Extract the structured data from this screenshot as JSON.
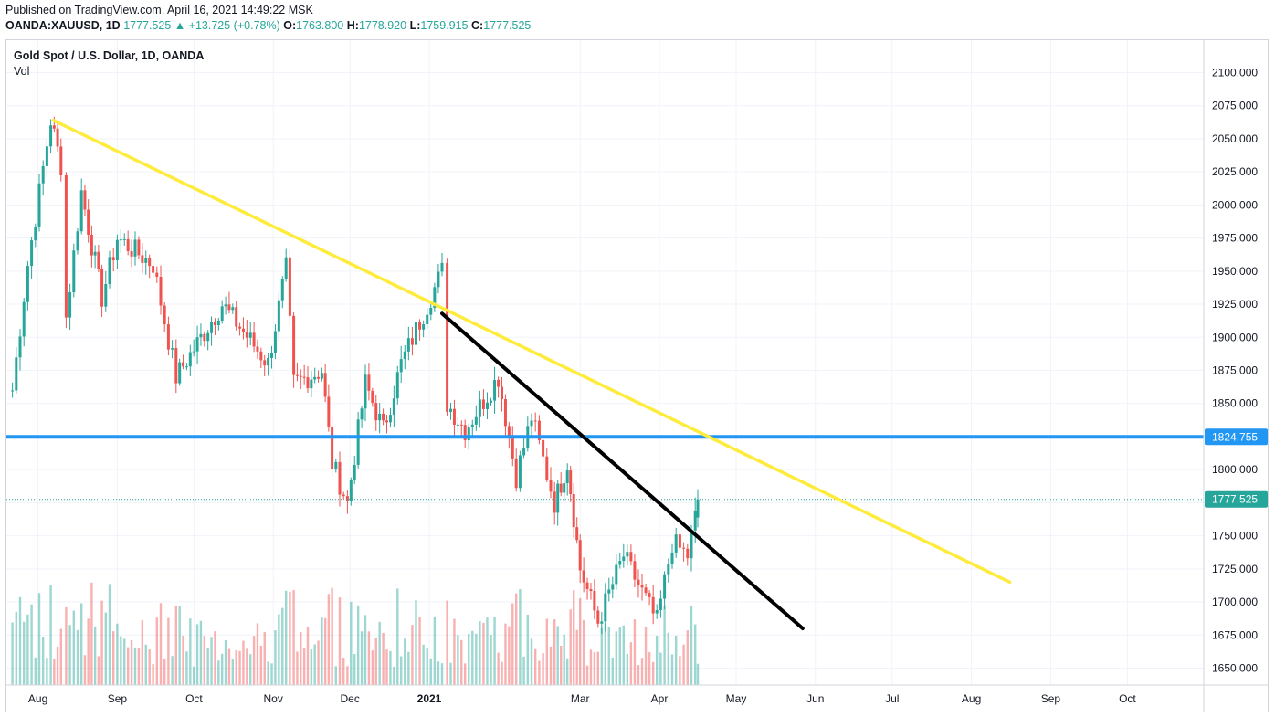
{
  "header": {
    "published": "Published on TradingView.com, April 16, 2021 14:49:22 MSK",
    "symbol": "OANDA:XAUUSD, 1D",
    "last": "1777.525",
    "change": "+13.725 (+0.78%)",
    "o_label": "O:",
    "o_value": "1763.800",
    "h_label": "H:",
    "h_value": "1778.920",
    "l_label": "L:",
    "l_value": "1759.915",
    "c_label": "C:",
    "c_value": "1777.525"
  },
  "legend": {
    "title": "Gold Spot / U.S. Dollar, 1D, OANDA",
    "vol": "Vol"
  },
  "colors": {
    "up": "#26a69a",
    "down": "#ef5350",
    "support": "#2196f3",
    "trend_long": "#ffeb3b",
    "trend_short": "#000000",
    "grid": "#f0f3fa"
  },
  "chart_data": {
    "type": "candlestick",
    "title": "Gold Spot / U.S. Dollar, 1D, OANDA",
    "x_ticks": [
      "Aug",
      "Sep",
      "Oct",
      "Nov",
      "Dec",
      "2021",
      "Mar",
      "Apr",
      "May",
      "Jun",
      "Jul",
      "Aug",
      "Sep",
      "Oct"
    ],
    "y_ticks": [
      "2100.000",
      "2075.000",
      "2050.000",
      "2025.000",
      "2000.000",
      "1975.000",
      "1950.000",
      "1925.000",
      "1900.000",
      "1875.000",
      "1850.000",
      "1825.000",
      "1800.000",
      "1775.000",
      "1750.000",
      "1725.000",
      "1700.000",
      "1675.000",
      "1650.000"
    ],
    "ylim": [
      1637,
      2112
    ],
    "price_labels": {
      "support": "1824.755",
      "last": "1777.525"
    },
    "support_level": 1824.755,
    "last_price": 1777.525,
    "trendlines": [
      {
        "name": "",
        "color": "long",
        "from": [
          "2020-08-07",
          2064
        ],
        "to": [
          "2021-08-16",
          1715
        ]
      },
      {
        "name": "",
        "color": "short",
        "from": [
          "2021-01-06",
          1918
        ],
        "to": [
          "2021-05-27",
          1680
        ]
      }
    ],
    "anchor_points": [
      [
        "2020-07-22",
        1860
      ],
      [
        "2020-07-28",
        1955
      ],
      [
        "2020-08-06",
        2064
      ],
      [
        "2020-08-10",
        2030
      ],
      [
        "2020-08-12",
        1915
      ],
      [
        "2020-08-18",
        2010
      ],
      [
        "2020-08-26",
        1930
      ],
      [
        "2020-09-01",
        1975
      ],
      [
        "2020-09-15",
        1955
      ],
      [
        "2020-09-24",
        1870
      ],
      [
        "2020-10-12",
        1925
      ],
      [
        "2020-10-30",
        1880
      ],
      [
        "2020-11-06",
        1952
      ],
      [
        "2020-11-09",
        1865
      ],
      [
        "2020-11-20",
        1875
      ],
      [
        "2020-11-24",
        1805
      ],
      [
        "2020-11-30",
        1775
      ],
      [
        "2020-12-07",
        1865
      ],
      [
        "2020-12-14",
        1830
      ],
      [
        "2020-12-21",
        1880
      ],
      [
        "2021-01-06",
        1950
      ],
      [
        "2021-01-08",
        1850
      ],
      [
        "2021-01-15",
        1830
      ],
      [
        "2021-01-28",
        1870
      ],
      [
        "2021-02-04",
        1795
      ],
      [
        "2021-02-10",
        1840
      ],
      [
        "2021-02-19",
        1775
      ],
      [
        "2021-02-24",
        1805
      ],
      [
        "2021-03-01",
        1725
      ],
      [
        "2021-03-08",
        1685
      ],
      [
        "2021-03-18",
        1735
      ],
      [
        "2021-03-31",
        1685
      ],
      [
        "2021-04-06",
        1745
      ],
      [
        "2021-04-12",
        1735
      ],
      [
        "2021-04-15",
        1764
      ],
      [
        "2021-04-16",
        1777.525
      ]
    ]
  }
}
